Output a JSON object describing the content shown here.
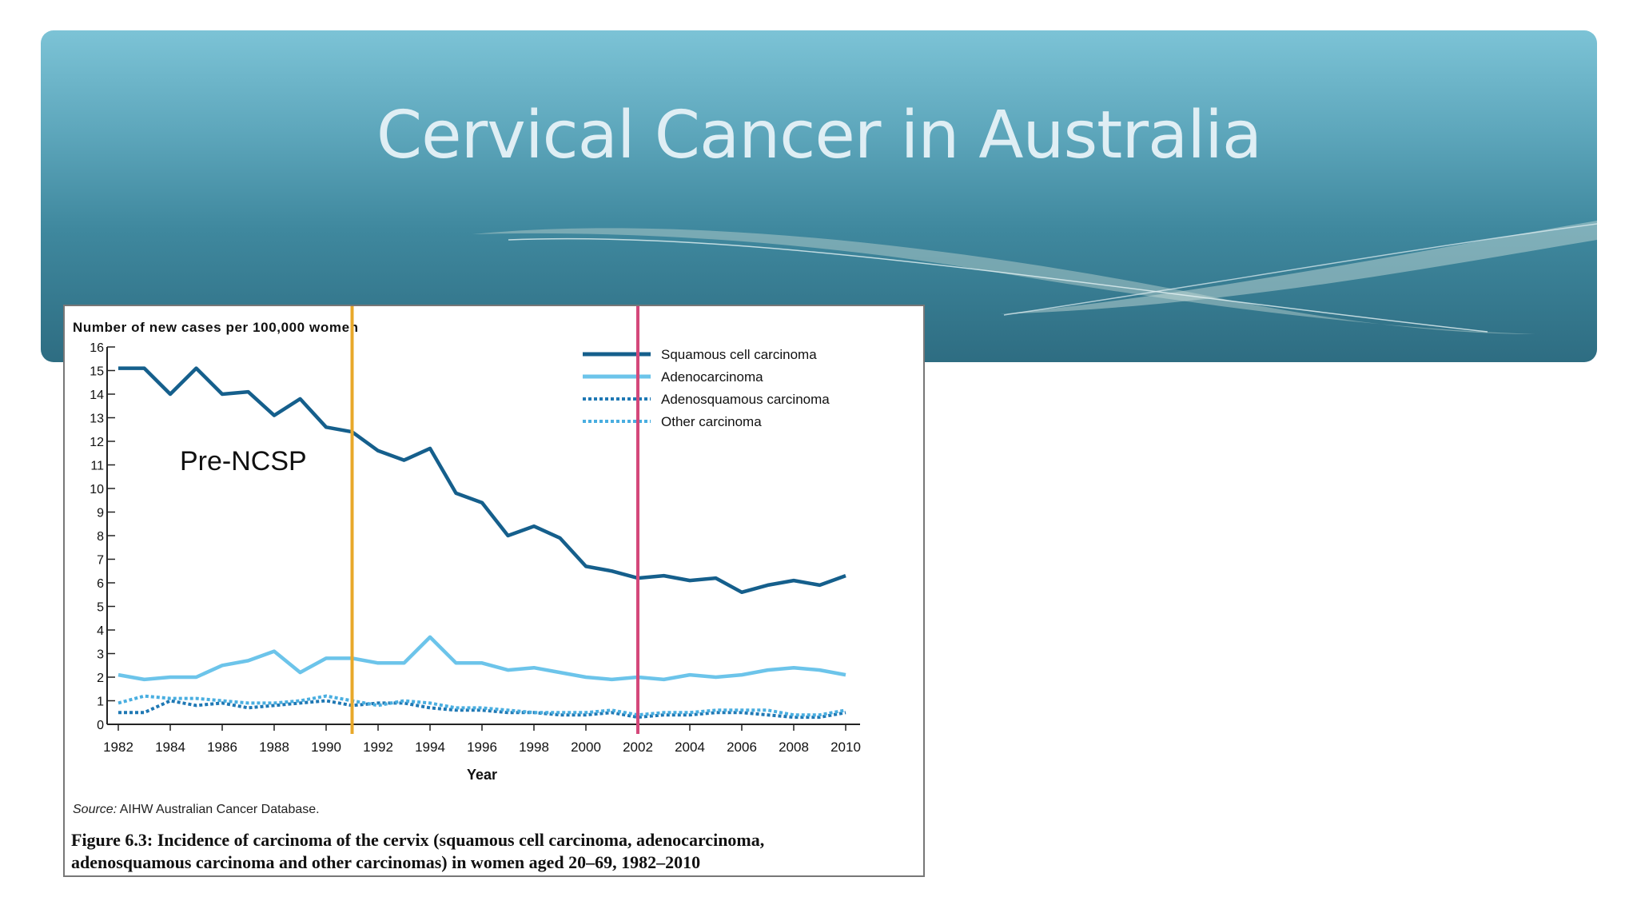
{
  "slide": {
    "title": "Cervical Cancer in Australia"
  },
  "figure": {
    "source_label": "Source:",
    "source_text": " AIHW Australian Cancer Database.",
    "caption_line1": "Figure 6.3: Incidence of carcinoma of the cervix (squamous cell carcinoma, adenocarcinoma,",
    "caption_line2": "adenosquamous carcinoma and other carcinomas) in women aged 20–69, 1982–2010"
  },
  "chart_data": {
    "type": "line",
    "ylabel": "Number of new cases per 100,000 women",
    "xlabel": "Year",
    "xlim": [
      1982,
      2010
    ],
    "ylim": [
      0,
      16
    ],
    "x_ticks": [
      1982,
      1984,
      1986,
      1988,
      1990,
      1992,
      1994,
      1996,
      1998,
      2000,
      2002,
      2004,
      2006,
      2008,
      2010
    ],
    "y_ticks": [
      0,
      1,
      2,
      3,
      4,
      5,
      6,
      7,
      8,
      9,
      10,
      11,
      12,
      13,
      14,
      15,
      16
    ],
    "grid": false,
    "legend_position": "top-right",
    "x": [
      1982,
      1983,
      1984,
      1985,
      1986,
      1987,
      1988,
      1989,
      1990,
      1991,
      1992,
      1993,
      1994,
      1995,
      1996,
      1997,
      1998,
      1999,
      2000,
      2001,
      2002,
      2003,
      2004,
      2005,
      2006,
      2007,
      2008,
      2009,
      2010
    ],
    "series": [
      {
        "name": "Squamous cell carcinoma",
        "style": "solid",
        "color": "#155f8c",
        "values": [
          15.1,
          15.1,
          14.0,
          15.1,
          14.0,
          14.1,
          13.1,
          13.8,
          12.6,
          12.4,
          11.6,
          11.2,
          11.7,
          9.8,
          9.4,
          8.0,
          8.4,
          7.9,
          6.7,
          6.5,
          6.2,
          6.3,
          6.1,
          6.2,
          5.6,
          5.9,
          6.1,
          5.9,
          6.3
        ]
      },
      {
        "name": "Adenocarcinoma",
        "style": "solid",
        "color": "#6cc4ea",
        "values": [
          2.1,
          1.9,
          2.0,
          2.0,
          2.5,
          2.7,
          3.1,
          2.2,
          2.8,
          2.8,
          2.6,
          2.6,
          3.7,
          2.6,
          2.6,
          2.3,
          2.4,
          2.2,
          2.0,
          1.9,
          2.0,
          1.9,
          2.1,
          2.0,
          2.1,
          2.3,
          2.4,
          2.3,
          2.1
        ]
      },
      {
        "name": "Adenosquamous carcinoma",
        "style": "dotted",
        "color": "#1f78b4",
        "values": [
          0.5,
          0.5,
          1.0,
          0.8,
          0.9,
          0.7,
          0.8,
          0.9,
          1.0,
          0.8,
          0.9,
          0.9,
          0.7,
          0.6,
          0.6,
          0.5,
          0.5,
          0.4,
          0.4,
          0.5,
          0.3,
          0.4,
          0.4,
          0.5,
          0.5,
          0.4,
          0.3,
          0.3,
          0.5
        ]
      },
      {
        "name": "Other carcinoma",
        "style": "dotted",
        "color": "#49aee0",
        "values": [
          0.9,
          1.2,
          1.1,
          1.1,
          1.0,
          0.9,
          0.9,
          1.0,
          1.2,
          1.0,
          0.8,
          1.0,
          0.9,
          0.7,
          0.7,
          0.6,
          0.5,
          0.5,
          0.5,
          0.6,
          0.4,
          0.5,
          0.5,
          0.6,
          0.6,
          0.6,
          0.4,
          0.4,
          0.6
        ]
      }
    ],
    "annotations": [
      {
        "text": "Pre-NCSP"
      }
    ],
    "reference_lines": [
      {
        "x": 1991,
        "color": "#e8a82a"
      },
      {
        "x": 2002,
        "color": "#d4487a"
      }
    ]
  }
}
